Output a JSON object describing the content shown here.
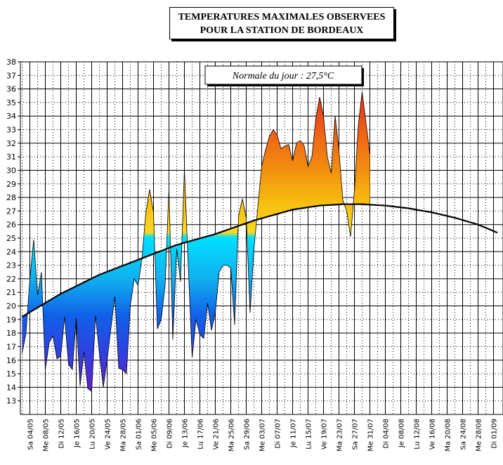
{
  "title": {
    "line1": "TEMPERATURES MAXIMALES OBSERVEES",
    "line2": "POUR LA STATION DE BORDEAUX"
  },
  "annotation": "Normale du jour : 27,5°C",
  "chart_data": {
    "type": "area",
    "title": "TEMPERATURES MAXIMALES OBSERVEES POUR LA STATION DE BORDEAUX",
    "xlabel": "",
    "ylabel": "",
    "ylim": [
      12,
      38
    ],
    "yticks": [
      13,
      14,
      15,
      16,
      17,
      18,
      19,
      20,
      21,
      22,
      23,
      24,
      25,
      26,
      27,
      28,
      29,
      30,
      31,
      32,
      33,
      34,
      35,
      36,
      37,
      38
    ],
    "grid": true,
    "x_day_range": [
      0,
      123
    ],
    "xtick_labels": [
      "Sa 04/05",
      "Me 08/05",
      "Di 12/05",
      "Je 16/05",
      "Lu 20/05",
      "Ve 24/05",
      "Ma 28/05",
      "Sa 01/06",
      "Me 05/06",
      "Di 09/06",
      "Je 13/06",
      "Lu 17/06",
      "Ve 21/06",
      "Ma 25/06",
      "Sa 29/06",
      "Me 03/07",
      "Di 07/07",
      "Je 11/07",
      "Lu 15/07",
      "Ve 19/07",
      "Ma 23/07",
      "Sa 27/07",
      "Me 31/07",
      "Di 04/08",
      "Je 08/08",
      "Lu 12/08",
      "Ve 16/08",
      "Ma 20/08",
      "Sa 24/08",
      "Me 28/08",
      "Di 01/09"
    ],
    "series": [
      {
        "name": "Température maximale observée (°C)",
        "days": [
          0,
          1,
          2,
          3,
          4,
          5,
          6,
          7,
          8,
          9,
          10,
          11,
          12,
          13,
          14,
          15,
          16,
          17,
          18,
          19,
          20,
          21,
          22,
          23,
          24,
          25,
          26,
          27,
          28,
          29,
          30,
          31,
          32,
          33,
          34,
          35,
          36,
          37,
          38,
          39,
          40,
          41,
          42,
          43,
          44,
          45,
          46,
          47,
          48,
          49,
          50,
          51,
          52,
          53,
          54,
          55,
          56,
          57,
          58,
          59,
          60,
          61,
          62,
          63,
          64,
          65,
          66,
          67,
          68,
          69,
          70,
          71,
          72,
          73,
          74,
          75,
          76,
          77,
          78,
          79,
          80,
          81,
          82,
          83,
          84,
          85,
          86,
          87,
          88,
          89,
          90
        ],
        "values": [
          16.5,
          18.0,
          22.0,
          24.9,
          20.8,
          22.5,
          15.3,
          17.3,
          17.8,
          16.1,
          16.3,
          19.2,
          15.7,
          15.3,
          19.1,
          14.1,
          16.6,
          13.9,
          13.7,
          19.3,
          16.5,
          14.0,
          16.0,
          18.4,
          20.7,
          15.4,
          15.3,
          15.0,
          20.0,
          22.0,
          21.5,
          23.5,
          26.8,
          28.6,
          26.9,
          18.3,
          19.0,
          21.5,
          28.7,
          17.5,
          24.2,
          21.8,
          30.1,
          22.9,
          16.2,
          19.0,
          17.9,
          17.6,
          20.2,
          18.2,
          19.5,
          22.5,
          23.0,
          23.0,
          22.8,
          18.6,
          26.6,
          27.9,
          26.5,
          19.5,
          24.2,
          27.3,
          30.3,
          31.5,
          32.5,
          33.0,
          32.6,
          31.6,
          31.8,
          31.9,
          30.7,
          32.0,
          32.2,
          31.8,
          30.3,
          31.0,
          33.8,
          35.4,
          34.0,
          31.0,
          29.8,
          34.0,
          31.5,
          27.8,
          27.0,
          25.1,
          28.5,
          33.3,
          35.8,
          33.5,
          31.2
        ]
      },
      {
        "name": "Normale du jour (°C)",
        "days": [
          0,
          10,
          20,
          30,
          40,
          50,
          60,
          70,
          77,
          83,
          88,
          94,
          100,
          106,
          112,
          118,
          123
        ],
        "values": [
          19.2,
          20.9,
          22.3,
          23.4,
          24.5,
          25.3,
          26.3,
          27.1,
          27.4,
          27.5,
          27.5,
          27.4,
          27.2,
          26.9,
          26.5,
          26.0,
          25.4
        ]
      }
    ],
    "annotation": "Normale du jour : 27,5°C"
  }
}
